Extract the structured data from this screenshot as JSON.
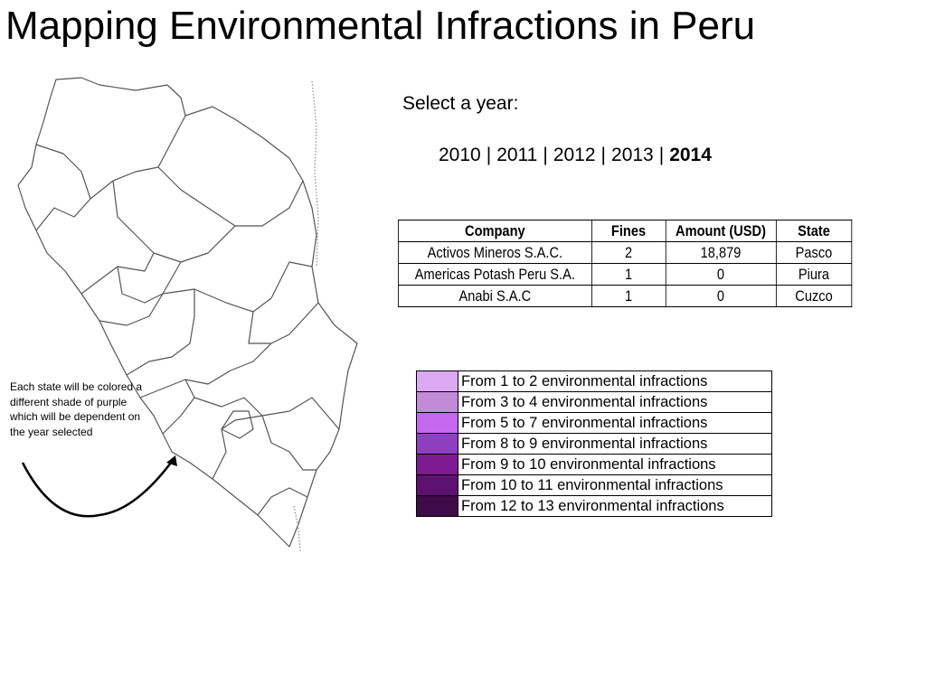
{
  "title": "Mapping Environmental Infractions in Peru",
  "note": "Each state will be colored a different shade of purple which will be dependent on the year selected",
  "year_selector": {
    "prompt": "Select a year:",
    "separator": "|",
    "years": [
      "2010",
      "2011",
      "2012",
      "2013",
      "2014"
    ],
    "selected": "2014"
  },
  "table": {
    "headers": [
      "Company",
      "Fines",
      "Amount (USD)",
      "State"
    ],
    "rows": [
      [
        "Activos Mineros S.A.C.",
        "2",
        "18,879",
        "Pasco"
      ],
      [
        "Americas Potash Peru S.A.",
        "1",
        "0",
        "Piura"
      ],
      [
        "Anabi S.A.C",
        "1",
        "0",
        "Cuzco"
      ]
    ]
  },
  "legend": [
    {
      "label": "From 1 to 2 environmental infractions",
      "color": "#dba9f2"
    },
    {
      "label": "From 3 to 4 environmental infractions",
      "color": "#c38ad8"
    },
    {
      "label": "From 5 to 7 environmental infractions",
      "color": "#c468f0"
    },
    {
      "label": "From 8 to 9 environmental infractions",
      "color": "#8e3fbf"
    },
    {
      "label": "From 9 to 10 environmental infractions",
      "color": "#7e1b92"
    },
    {
      "label": "From 10 to 11 environmental infractions",
      "color": "#5d1170"
    },
    {
      "label": "From 12 to 13 environmental infractions",
      "color": "#3f0a48"
    }
  ]
}
